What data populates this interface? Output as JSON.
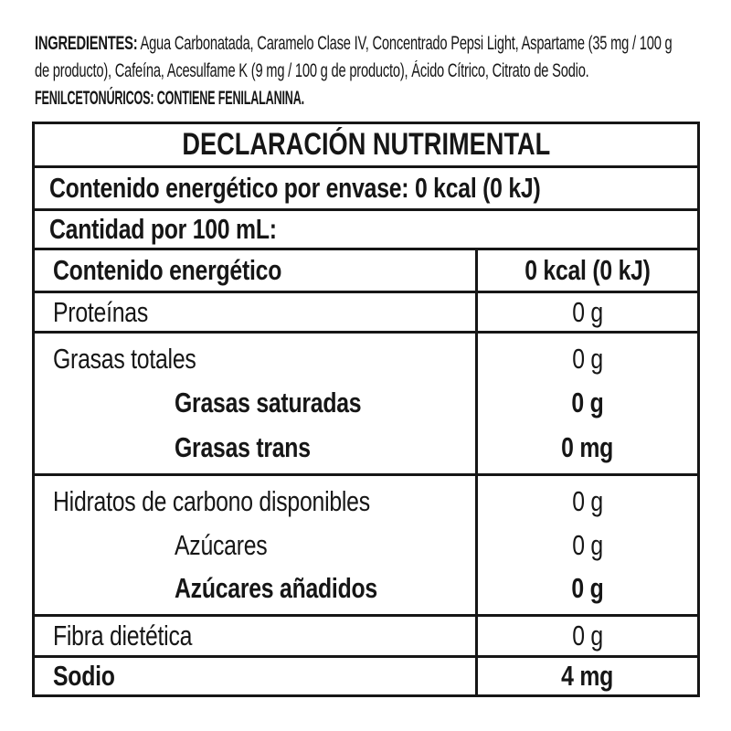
{
  "ingredients": {
    "label_bold": "INGREDIENTES:",
    "line1_rest": " Agua Carbonatada, Caramelo Clase IV, Concentrado Pepsi Light, Aspartame (35 mg / 100 g",
    "line2": "de producto), Cafeína, Acesulfame K (9 mg / 100 g de producto), Ácido Cítrico, Citrato de Sodio.",
    "phenylketonurics_warning": "FENILCETONÚRICOS: CONTIENE FENILALANINA."
  },
  "nutrition_table": {
    "title": "DECLARACIÓN NUTRIMENTAL",
    "energy_per_package": "Contenido energético por envase: 0 kcal (0 kJ)",
    "serving_basis": "Cantidad por 100 mL:",
    "rows": [
      {
        "label": "Contenido energético",
        "value": "0 kcal (0 kJ)",
        "emphasis": "bold",
        "indent": false
      },
      {
        "label": "Proteínas",
        "value": "0 g",
        "emphasis": "regular",
        "indent": false
      },
      {
        "label": "Grasas totales",
        "value": "0 g",
        "emphasis": "regular",
        "indent": false
      },
      {
        "label": "Grasas saturadas",
        "value": "0 g",
        "emphasis": "bold",
        "indent": true
      },
      {
        "label": "Grasas trans",
        "value": "0 mg",
        "emphasis": "bold",
        "indent": true
      },
      {
        "label": "Hidratos de carbono disponibles",
        "value": "0 g",
        "emphasis": "regular",
        "indent": false
      },
      {
        "label": "Azúcares",
        "value": "0 g",
        "emphasis": "regular",
        "indent": true
      },
      {
        "label": "Azúcares añadidos",
        "value": "0 g",
        "emphasis": "bold",
        "indent": true
      },
      {
        "label": "Fibra dietética",
        "value": "0 g",
        "emphasis": "regular",
        "indent": false
      },
      {
        "label": "Sodio",
        "value": "4 mg",
        "emphasis": "bold",
        "indent": false
      }
    ],
    "colors": {
      "text": "#161616",
      "border": "#161616",
      "background": "#ffffff"
    }
  }
}
